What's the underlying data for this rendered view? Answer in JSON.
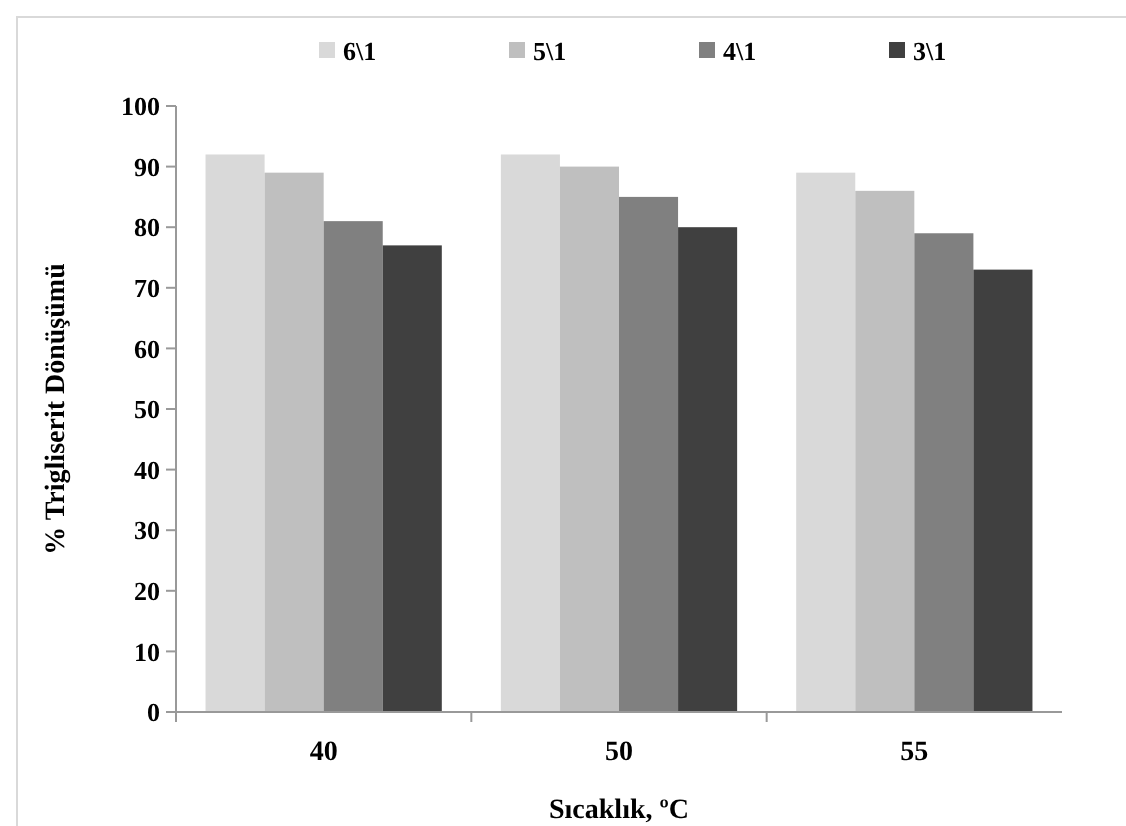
{
  "chart_data": {
    "type": "bar",
    "xlabel": "Sıcaklık, ºC",
    "ylabel": "% Trigliserit Dönüşümü",
    "categories": [
      "40",
      "50",
      "55"
    ],
    "series": [
      {
        "name": "6\\1",
        "color": "#d9d9d9",
        "values": [
          92,
          92,
          89
        ]
      },
      {
        "name": "5\\1",
        "color": "#bfbfbf",
        "values": [
          89,
          90,
          86
        ]
      },
      {
        "name": "4\\1",
        "color": "#808080",
        "values": [
          81,
          85,
          79
        ]
      },
      {
        "name": "3\\1",
        "color": "#404040",
        "values": [
          77,
          80,
          73
        ]
      }
    ],
    "ylim": [
      0,
      100
    ],
    "yticks": [
      0,
      10,
      20,
      30,
      40,
      50,
      60,
      70,
      80,
      90,
      100
    ],
    "grid": false,
    "legend": "top"
  }
}
